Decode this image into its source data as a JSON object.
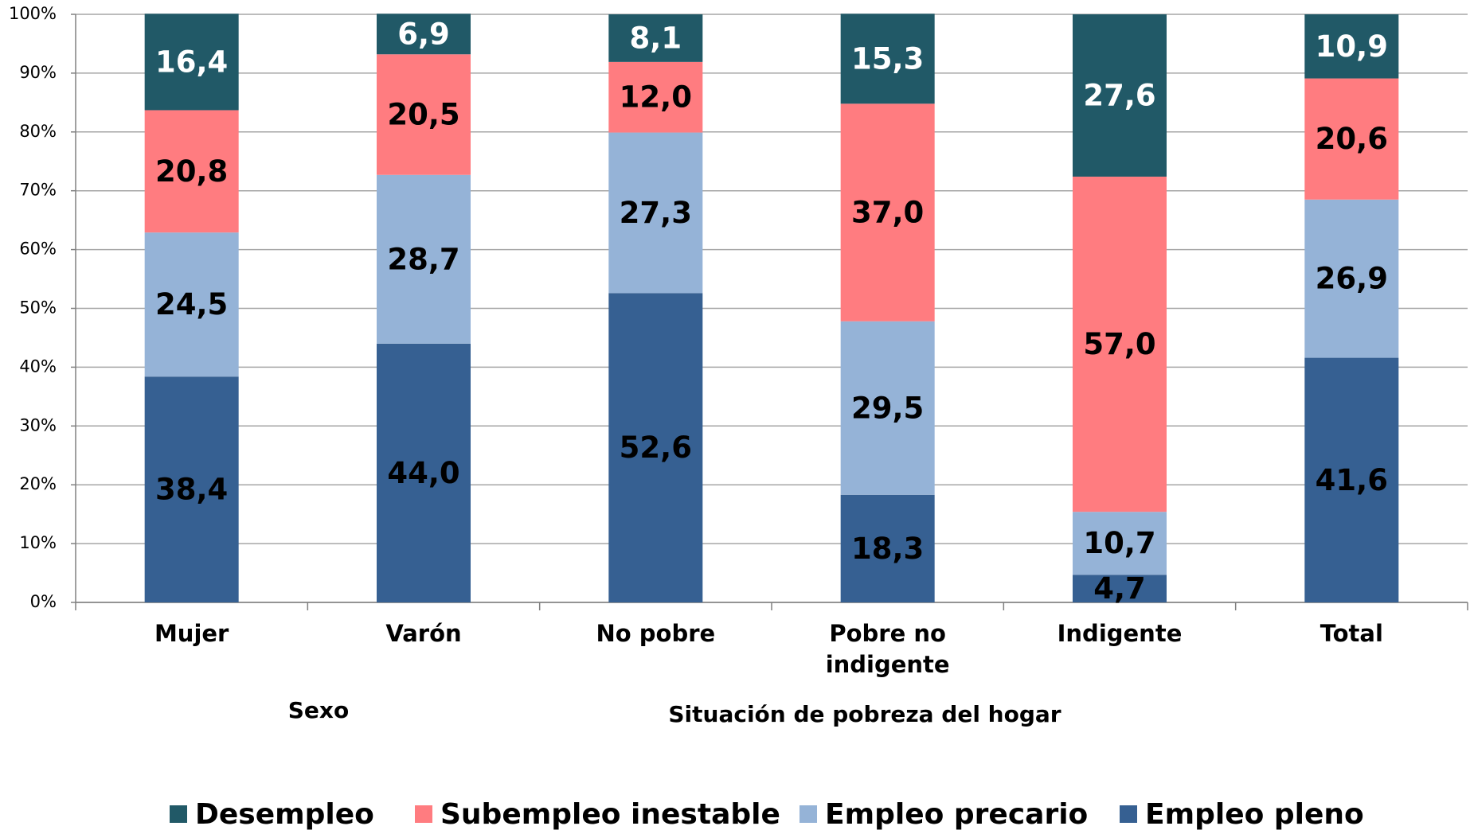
{
  "chart_data": {
    "type": "stacked-bar",
    "categories": [
      "Mujer",
      "Varón",
      "No pobre",
      "Pobre no indigente",
      "Indigente",
      "Total"
    ],
    "groups": [
      {
        "label": "Sexo"
      },
      {
        "label": "Situación de pobreza del hogar"
      }
    ],
    "series": [
      {
        "name": "Empleo pleno",
        "color": "#366092",
        "values": [
          38.4,
          44.0,
          52.6,
          18.3,
          4.7,
          41.6
        ],
        "value_labels": [
          "38,4",
          "44,0",
          "52,6",
          "18,3",
          "4,7",
          "41,6"
        ]
      },
      {
        "name": "Empleo precario",
        "color": "#95b3d7",
        "values": [
          24.5,
          28.7,
          27.3,
          29.5,
          10.7,
          26.9
        ],
        "value_labels": [
          "24,5",
          "28,7",
          "27,3",
          "29,5",
          "10,7",
          "26,9"
        ]
      },
      {
        "name": "Subempleo inestable",
        "color": "#ff7c80",
        "values": [
          20.8,
          20.5,
          12.0,
          37.0,
          57.0,
          20.6
        ],
        "value_labels": [
          "20,8",
          "20,5",
          "12,0",
          "37,0",
          "57,0",
          "20,6"
        ]
      },
      {
        "name": "Desempleo",
        "color": "#215967",
        "values": [
          16.4,
          6.9,
          8.1,
          15.3,
          27.6,
          10.9
        ],
        "value_labels": [
          "16,4",
          "6,9",
          "8,1",
          "15,3",
          "27,6",
          "10,9"
        ]
      }
    ],
    "ylim": [
      0,
      100
    ],
    "yticks": [
      {
        "value": 0,
        "label": "0%"
      },
      {
        "value": 10,
        "label": "10%"
      },
      {
        "value": 20,
        "label": "20%"
      },
      {
        "value": 30,
        "label": "30%"
      },
      {
        "value": 40,
        "label": "40%"
      },
      {
        "value": 50,
        "label": "50%"
      },
      {
        "value": 60,
        "label": "60%"
      },
      {
        "value": 70,
        "label": "70%"
      },
      {
        "value": 80,
        "label": "80%"
      },
      {
        "value": 90,
        "label": "90%"
      },
      {
        "value": 100,
        "label": "100%"
      }
    ],
    "grid": true,
    "legend": "bottom"
  }
}
